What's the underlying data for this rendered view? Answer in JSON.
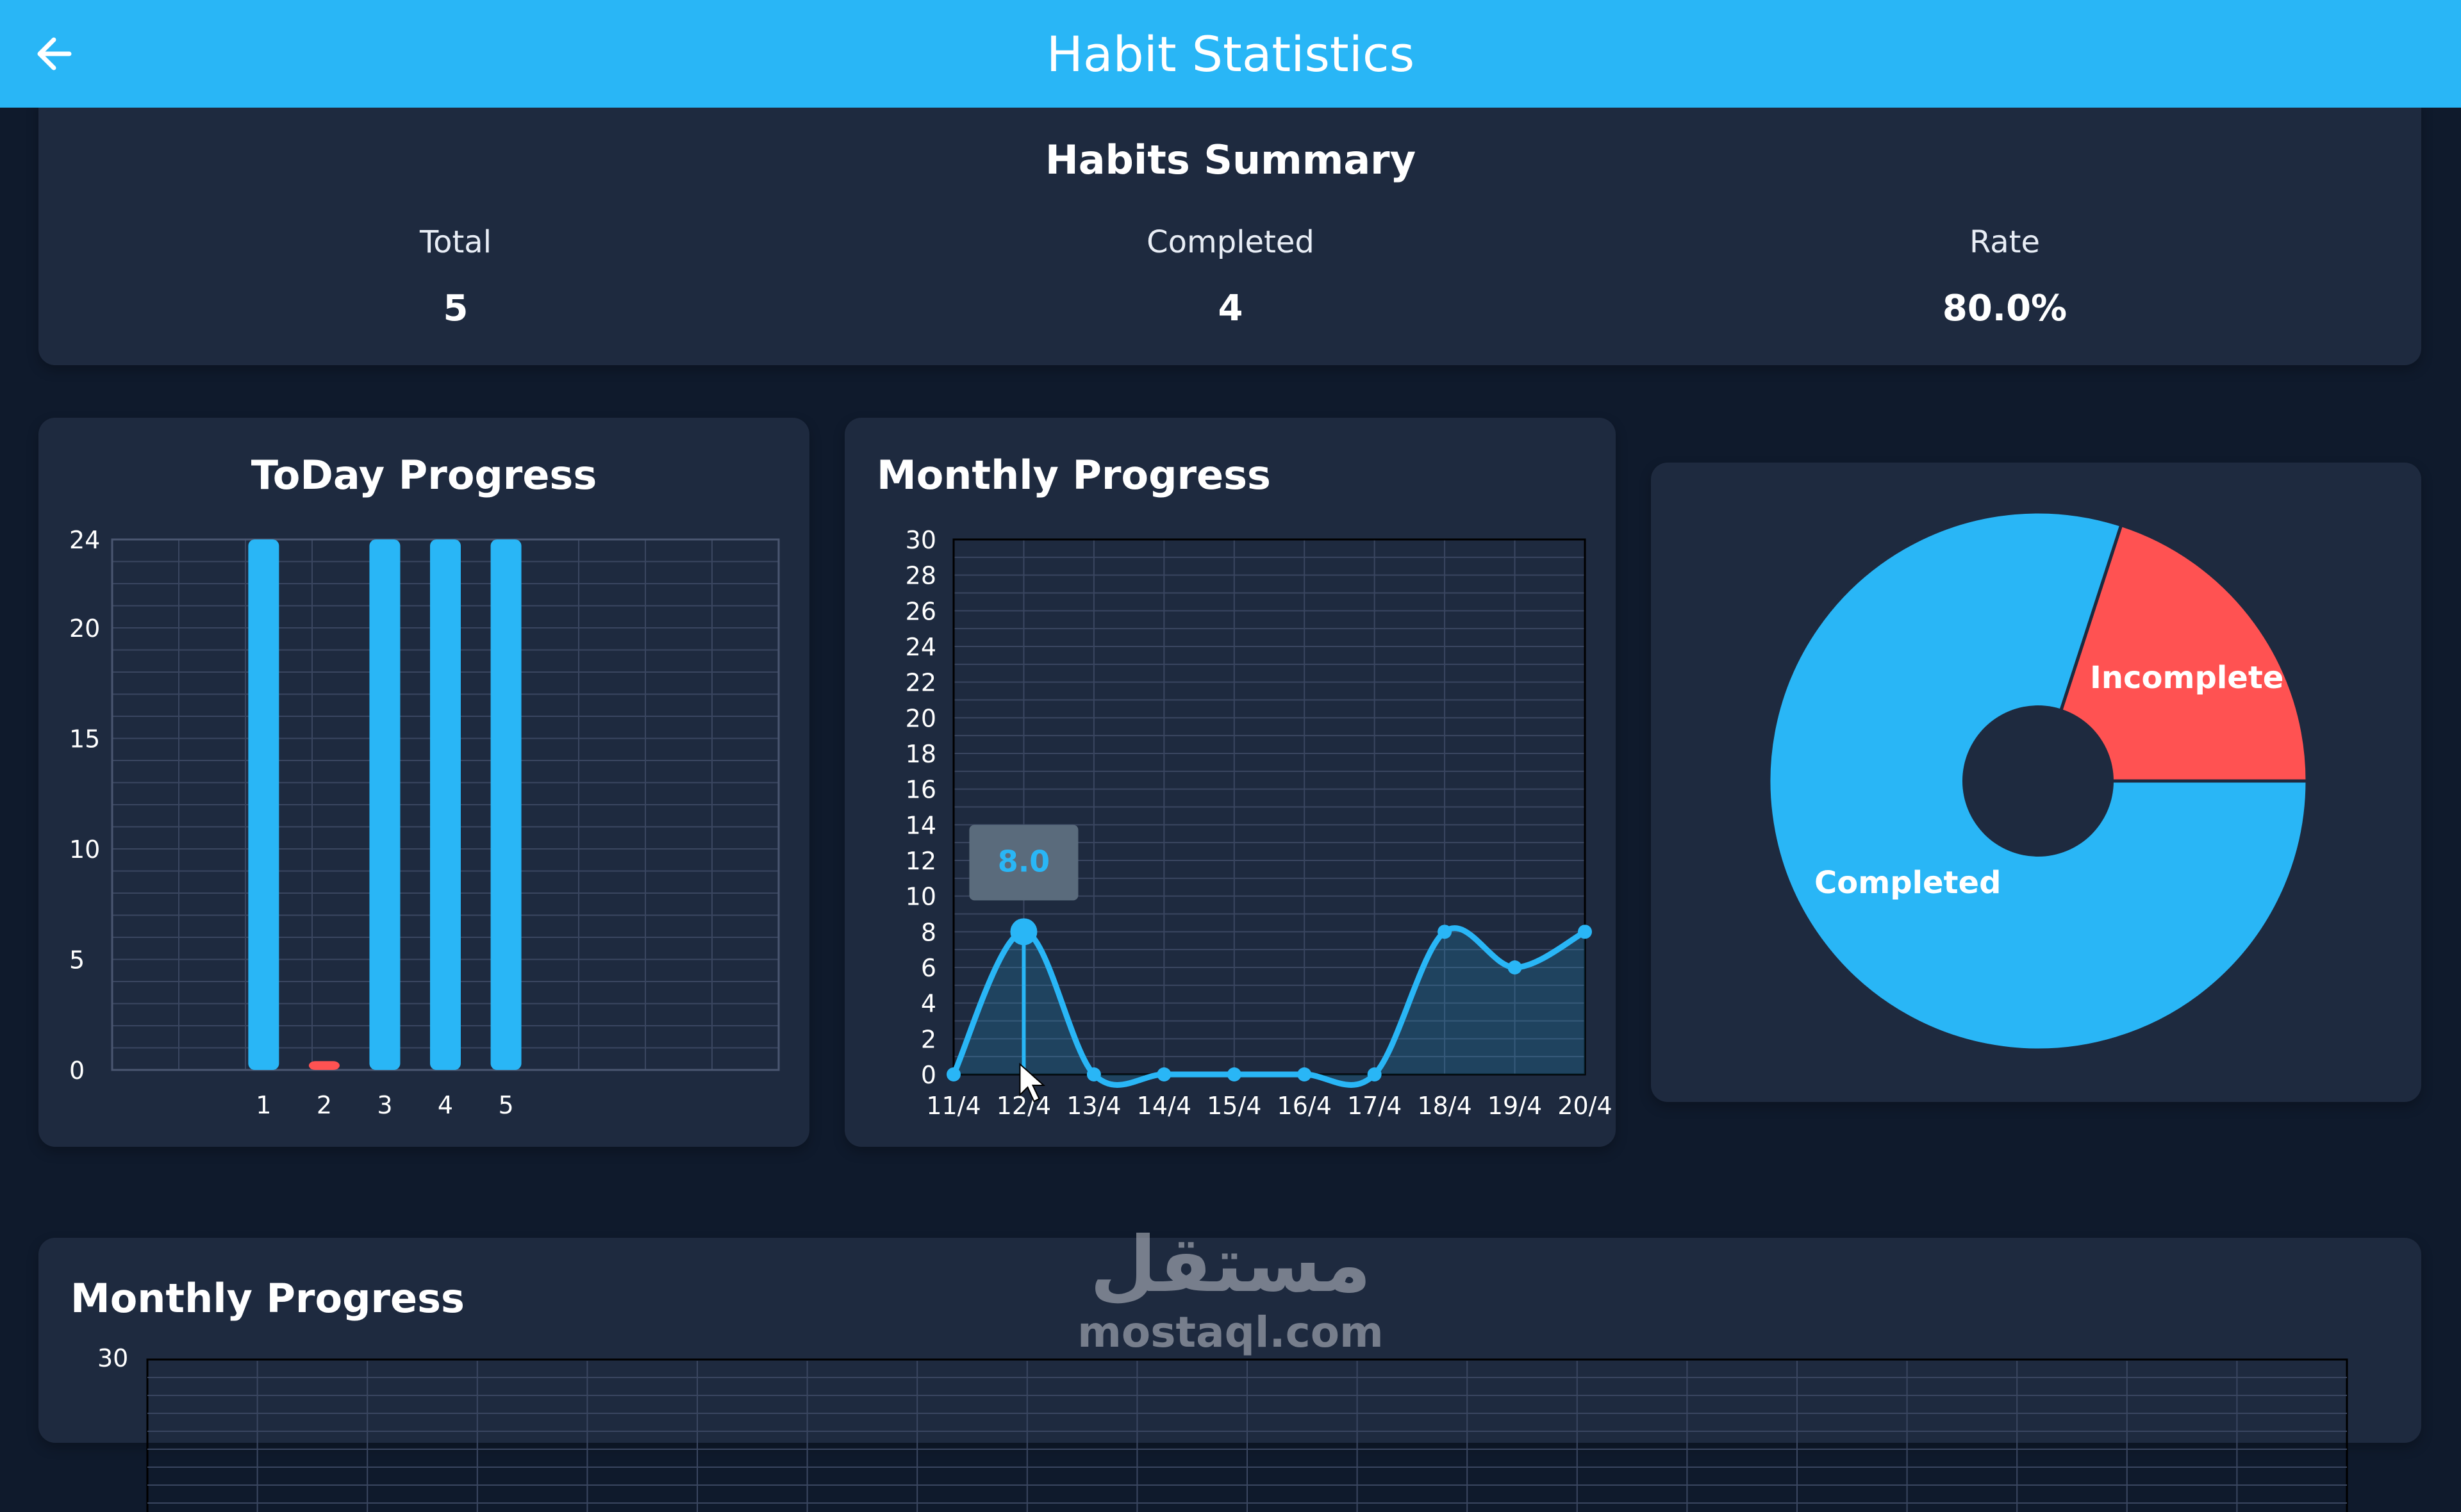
{
  "appbar": {
    "title": "Habit Statistics",
    "back_icon": "arrow-left-icon"
  },
  "summary": {
    "title": "Habits Summary",
    "stats": [
      {
        "label": "Total",
        "value": "5"
      },
      {
        "label": "Completed",
        "value": "4"
      },
      {
        "label": "Rate",
        "value": "80.0%"
      }
    ]
  },
  "colors": {
    "accent": "#29b6f6",
    "bar": "#29b6f6",
    "incomplete": "#ff5252",
    "card": "#1e2a3f",
    "background": "#0f1a2c",
    "grid": "#3a4660"
  },
  "today_progress": {
    "title": "ToDay Progress"
  },
  "monthly_progress": {
    "title": "Monthly Progress",
    "tooltip": "8.0"
  },
  "bottom_section": {
    "title": "Monthly Progress",
    "y_top_label": "30"
  },
  "watermark": {
    "arabic": "مستقل",
    "latin": "mostaql.com"
  },
  "chart_data": [
    {
      "type": "bar",
      "title": "ToDay Progress",
      "categories": [
        "1",
        "2",
        "3",
        "4",
        "5"
      ],
      "values": [
        24,
        0.4,
        24,
        24,
        24
      ],
      "bar_colors": [
        "#29b6f6",
        "#ff5252",
        "#29b6f6",
        "#29b6f6",
        "#29b6f6"
      ],
      "x_range": [
        -2.5,
        8.5
      ],
      "ylim": [
        0,
        24
      ],
      "yticks": [
        0,
        5,
        10,
        15,
        20,
        24
      ],
      "grid": true
    },
    {
      "type": "area",
      "title": "Monthly Progress",
      "categories": [
        "11/4",
        "12/4",
        "13/4",
        "14/4",
        "15/4",
        "16/4",
        "17/4",
        "18/4",
        "19/4",
        "20/4"
      ],
      "values": [
        0,
        8,
        0,
        0,
        0,
        0,
        0,
        8,
        6,
        8
      ],
      "ylim": [
        0,
        30
      ],
      "yticks": [
        0,
        2,
        4,
        6,
        8,
        10,
        12,
        14,
        16,
        18,
        20,
        22,
        24,
        26,
        28,
        30
      ],
      "highlighted_point": {
        "category": "12/4",
        "value": 8.0
      },
      "grid": true
    },
    {
      "type": "pie",
      "labels": [
        "Completed",
        "Incomplete"
      ],
      "values": [
        4,
        1
      ],
      "colors": [
        "#29b6f6",
        "#ff5252"
      ],
      "donut": true
    }
  ]
}
